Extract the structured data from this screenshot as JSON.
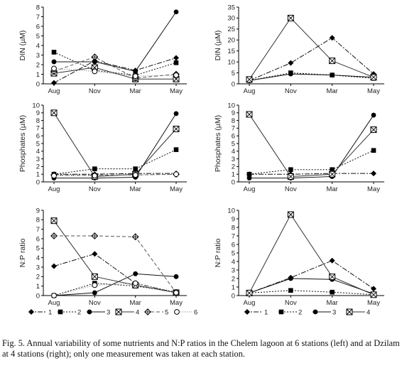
{
  "figure_caption": "Fig. 5. Annual variability of some nutrients and N:P ratios in the Chelem lagoon at 6 stations (left) and at Dzilam at 4 stations (right); only one measurement was taken at each station.",
  "legend_left": [
    "1",
    "2",
    "3",
    "4",
    "5",
    "6"
  ],
  "legend_right": [
    "1",
    "2",
    "3",
    "4"
  ],
  "chart_data": [
    {
      "id": "chelem_din",
      "type": "line",
      "ylabel": "DIN (µM)",
      "x": [
        "Aug",
        "Nov",
        "Mar",
        "May"
      ],
      "ylim": [
        0,
        8
      ],
      "yticks": [
        0,
        1,
        2,
        3,
        4,
        5,
        6,
        7,
        8
      ],
      "series": [
        {
          "name": "1",
          "values": [
            0.1,
            2.4,
            1.4,
            2.7
          ]
        },
        {
          "name": "2",
          "values": [
            3.3,
            1.4,
            0.9,
            2.2
          ]
        },
        {
          "name": "3",
          "values": [
            2.3,
            2.3,
            1.3,
            7.5
          ]
        },
        {
          "name": "4",
          "values": [
            1.1,
            1.7,
            0.5,
            0.5
          ]
        },
        {
          "name": "5",
          "values": [
            1.3,
            2.8,
            0.6,
            1.0
          ]
        },
        {
          "name": "6",
          "values": [
            1.6,
            1.3,
            0.8,
            0.9
          ]
        }
      ]
    },
    {
      "id": "dzilam_din",
      "type": "line",
      "ylabel": "DIN (µM)",
      "x": [
        "Aug",
        "Nov",
        "Mar",
        "May"
      ],
      "ylim": [
        0,
        35
      ],
      "yticks": [
        0,
        5,
        10,
        15,
        20,
        25,
        30,
        35
      ],
      "series": [
        {
          "name": "1",
          "values": [
            1.5,
            9.5,
            21,
            4.5
          ]
        },
        {
          "name": "2",
          "values": [
            1.5,
            5.0,
            4.0,
            2.5
          ]
        },
        {
          "name": "3",
          "values": [
            1.5,
            4.5,
            4.0,
            3.0
          ]
        },
        {
          "name": "4",
          "values": [
            2.0,
            30,
            10.5,
            3.0
          ]
        }
      ]
    },
    {
      "id": "chelem_phos",
      "type": "line",
      "ylabel": "Phosphates (µM)",
      "x": [
        "Aug",
        "Nov",
        "Mar",
        "May"
      ],
      "ylim": [
        0,
        10
      ],
      "yticks": [
        0,
        1,
        2,
        3,
        4,
        5,
        6,
        7,
        8,
        9,
        10
      ],
      "series": [
        {
          "name": "1",
          "values": [
            1.0,
            1.0,
            1.1,
            1.1
          ]
        },
        {
          "name": "2",
          "values": [
            1.0,
            1.7,
            1.7,
            4.2
          ]
        },
        {
          "name": "3",
          "values": [
            0.5,
            0.5,
            0.6,
            8.9
          ]
        },
        {
          "name": "4",
          "values": [
            9.0,
            0.7,
            1.0,
            6.9
          ]
        },
        {
          "name": "5",
          "values": [
            0.9,
            0.9,
            0.9,
            1.0
          ]
        },
        {
          "name": "6",
          "values": [
            0.8,
            0.8,
            0.9,
            1.0
          ]
        }
      ]
    },
    {
      "id": "dzilam_phos",
      "type": "line",
      "ylabel": "Phosphates (µM)",
      "x": [
        "Aug",
        "Nov",
        "Mar",
        "May"
      ],
      "ylim": [
        0,
        10
      ],
      "yticks": [
        0,
        1,
        2,
        3,
        4,
        5,
        6,
        7,
        8,
        9,
        10
      ],
      "series": [
        {
          "name": "1",
          "values": [
            1.0,
            1.0,
            1.1,
            1.1
          ]
        },
        {
          "name": "2",
          "values": [
            1.0,
            1.6,
            1.6,
            4.1
          ]
        },
        {
          "name": "3",
          "values": [
            0.5,
            0.5,
            0.7,
            8.7
          ]
        },
        {
          "name": "4",
          "values": [
            8.8,
            0.7,
            1.0,
            6.8
          ]
        }
      ]
    },
    {
      "id": "chelem_np",
      "type": "line",
      "ylabel": "N:P ratio",
      "x": [
        "Aug",
        "Nov",
        "Mar",
        "May"
      ],
      "ylim": [
        0,
        9
      ],
      "yticks": [
        0,
        1,
        2,
        3,
        4,
        5,
        6,
        7,
        8,
        9
      ],
      "series": [
        {
          "name": "1",
          "values": [
            3.1,
            4.4,
            1.3,
            0.3
          ]
        },
        {
          "name": "2",
          "values": [
            0.0,
            1.3,
            1.0,
            0.4
          ]
        },
        {
          "name": "3",
          "values": [
            0.0,
            0.3,
            2.3,
            2.0
          ]
        },
        {
          "name": "4",
          "values": [
            7.9,
            2.0,
            1.1,
            0.3
          ]
        },
        {
          "name": "5",
          "values": [
            6.3,
            6.3,
            6.2,
            0.3
          ]
        },
        {
          "name": "6",
          "values": [
            0.0,
            1.1,
            1.3,
            0.3
          ]
        }
      ]
    },
    {
      "id": "dzilam_np",
      "type": "line",
      "ylabel": "N:P ratio",
      "x": [
        "Aug",
        "Nov",
        "Mar",
        "May"
      ],
      "ylim": [
        0,
        10
      ],
      "yticks": [
        0,
        1,
        2,
        3,
        4,
        5,
        6,
        7,
        8,
        9,
        10
      ],
      "series": [
        {
          "name": "1",
          "values": [
            0.3,
            2.1,
            4.1,
            0.8
          ]
        },
        {
          "name": "2",
          "values": [
            0.3,
            0.6,
            0.4,
            0.1
          ]
        },
        {
          "name": "3",
          "values": [
            0.3,
            2.0,
            1.9,
            0.2
          ]
        },
        {
          "name": "4",
          "values": [
            0.3,
            9.5,
            2.2,
            0.1
          ]
        }
      ]
    }
  ]
}
